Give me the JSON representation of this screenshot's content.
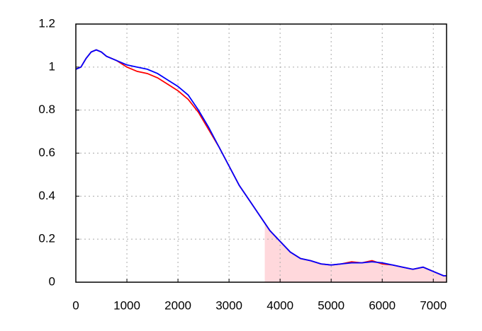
{
  "chart_data": {
    "type": "line",
    "x": [
      0,
      100,
      200,
      300,
      400,
      500,
      600,
      800,
      1000,
      1200,
      1400,
      1600,
      1800,
      2000,
      2200,
      2400,
      2600,
      2800,
      3000,
      3200,
      3400,
      3600,
      3800,
      4000,
      4200,
      4400,
      4600,
      4800,
      5000,
      5200,
      5400,
      5600,
      5800,
      6000,
      6200,
      6400,
      6600,
      6800,
      7000,
      7200,
      7260
    ],
    "series": [
      {
        "color": "#ff0000",
        "values": [
          0.99,
          1.0,
          1.04,
          1.07,
          1.08,
          1.07,
          1.05,
          1.03,
          1.0,
          0.98,
          0.97,
          0.95,
          0.92,
          0.89,
          0.85,
          0.79,
          0.71,
          0.63,
          0.54,
          0.45,
          0.38,
          0.31,
          0.24,
          0.19,
          0.14,
          0.11,
          0.1,
          0.085,
          0.08,
          0.085,
          0.095,
          0.09,
          0.1,
          0.085,
          0.08,
          0.07,
          0.06,
          0.07,
          0.05,
          0.03,
          0.03
        ]
      },
      {
        "color": "#0000ff",
        "values": [
          0.99,
          1.0,
          1.04,
          1.07,
          1.08,
          1.07,
          1.05,
          1.03,
          1.01,
          1.0,
          0.99,
          0.97,
          0.94,
          0.91,
          0.87,
          0.8,
          0.72,
          0.63,
          0.54,
          0.45,
          0.38,
          0.31,
          0.24,
          0.19,
          0.14,
          0.11,
          0.1,
          0.085,
          0.08,
          0.085,
          0.09,
          0.09,
          0.095,
          0.09,
          0.08,
          0.07,
          0.06,
          0.07,
          0.05,
          0.03,
          0.03
        ]
      }
    ],
    "shade": {
      "from": 3700,
      "color": "#ffd8dc"
    },
    "xlim": [
      0,
      7260
    ],
    "xticks": [
      0,
      1000,
      2000,
      3000,
      4000,
      5000,
      6000,
      7000
    ],
    "ylim": [
      0,
      1.2
    ],
    "yticks": [
      0,
      0.2,
      0.4,
      0.6,
      0.8,
      1,
      1.2
    ],
    "grid": true
  }
}
